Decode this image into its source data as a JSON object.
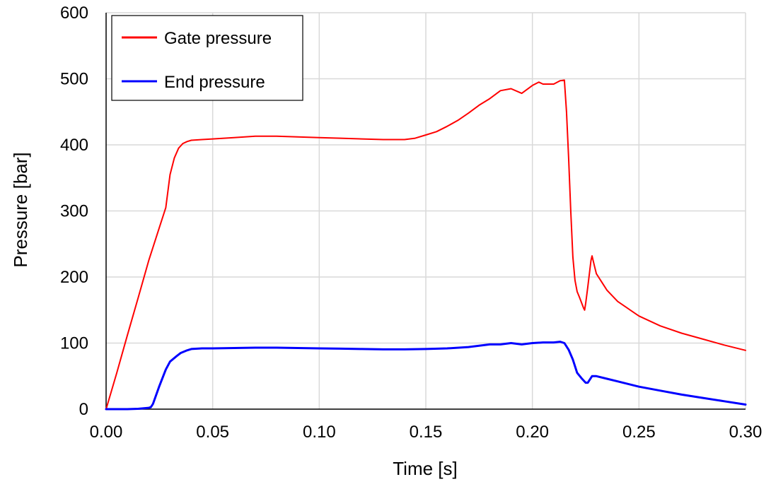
{
  "chart_data": {
    "type": "line",
    "xlabel": "Time [s]",
    "ylabel": "Pressure [bar]",
    "xlim": [
      0,
      0.3
    ],
    "ylim": [
      0,
      600
    ],
    "x_ticks": [
      "0.00",
      "0.05",
      "0.10",
      "0.15",
      "0.20",
      "0.25",
      "0.30"
    ],
    "y_ticks": [
      "0",
      "100",
      "200",
      "300",
      "400",
      "500",
      "600"
    ],
    "grid": true,
    "legend_position": "top-left",
    "series": [
      {
        "name": "Gate pressure",
        "color": "#ff0000",
        "x": [
          0,
          0.005,
          0.01,
          0.015,
          0.02,
          0.025,
          0.028,
          0.03,
          0.032,
          0.034,
          0.036,
          0.038,
          0.04,
          0.045,
          0.05,
          0.06,
          0.07,
          0.08,
          0.09,
          0.1,
          0.11,
          0.12,
          0.13,
          0.14,
          0.145,
          0.15,
          0.155,
          0.16,
          0.165,
          0.17,
          0.175,
          0.18,
          0.185,
          0.19,
          0.195,
          0.2,
          0.203,
          0.205,
          0.21,
          0.213,
          0.215,
          0.216,
          0.217,
          0.218,
          0.219,
          0.22,
          0.221,
          0.222,
          0.224,
          0.2245,
          0.225,
          0.226,
          0.2275,
          0.228,
          0.229,
          0.23,
          0.235,
          0.24,
          0.25,
          0.26,
          0.27,
          0.28,
          0.29,
          0.3
        ],
        "y": [
          0,
          55,
          112,
          168,
          225,
          275,
          305,
          355,
          380,
          395,
          402,
          405,
          407,
          408,
          409,
          411,
          413,
          413,
          412,
          411,
          410,
          409,
          408,
          408,
          410,
          415,
          420,
          428,
          437,
          448,
          460,
          470,
          482,
          485,
          478,
          490,
          495,
          492,
          492,
          497,
          498,
          450,
          380,
          300,
          230,
          195,
          178,
          170,
          153,
          150,
          160,
          185,
          225,
          232,
          218,
          205,
          180,
          163,
          141,
          126,
          115,
          106,
          97,
          89
        ]
      },
      {
        "name": "End pressure",
        "color": "#0000ff",
        "x": [
          0,
          0.01,
          0.015,
          0.02,
          0.021,
          0.022,
          0.025,
          0.028,
          0.03,
          0.033,
          0.035,
          0.038,
          0.04,
          0.045,
          0.05,
          0.06,
          0.07,
          0.08,
          0.09,
          0.1,
          0.11,
          0.12,
          0.13,
          0.14,
          0.15,
          0.16,
          0.17,
          0.175,
          0.18,
          0.185,
          0.19,
          0.195,
          0.2,
          0.205,
          0.21,
          0.213,
          0.215,
          0.217,
          0.219,
          0.221,
          0.223,
          0.225,
          0.226,
          0.227,
          0.228,
          0.23,
          0.235,
          0.24,
          0.25,
          0.26,
          0.27,
          0.28,
          0.29,
          0.3
        ],
        "y": [
          0,
          0,
          0.5,
          2,
          3,
          8,
          35,
          60,
          72,
          80,
          85,
          89,
          91,
          92,
          92,
          92.5,
          93,
          93,
          92.5,
          92,
          91.5,
          91,
          90.5,
          90.5,
          91,
          92,
          94,
          96,
          98,
          98,
          100,
          98,
          100,
          101,
          101,
          102,
          100,
          90,
          75,
          55,
          47,
          40,
          40,
          45,
          50,
          50,
          46,
          42,
          34,
          28,
          22,
          17,
          12,
          7
        ]
      }
    ]
  }
}
